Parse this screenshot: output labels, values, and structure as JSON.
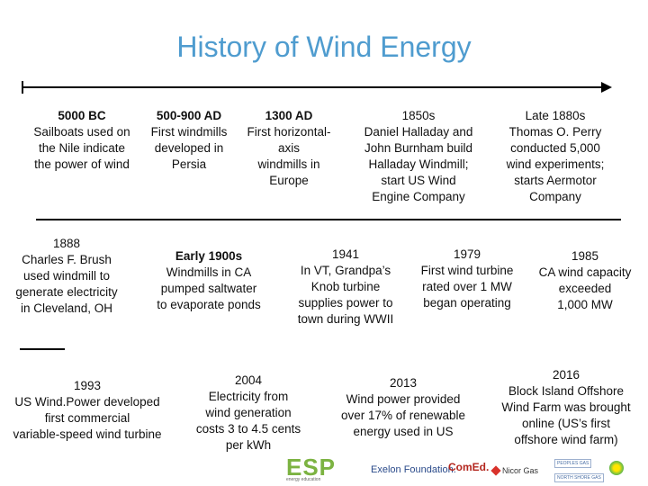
{
  "title": "History of Wind Energy",
  "events": [
    {
      "head": "5000 BC",
      "desc": "Sailboats used on\nthe Nile indicate\nthe power of wind",
      "bold": true
    },
    {
      "head": "500-900 AD",
      "desc": "First windmills\ndeveloped in\nPersia",
      "bold": true
    },
    {
      "head": "1300 AD",
      "desc": "First horizontal-\naxis\nwindmills in\nEurope",
      "bold": true
    },
    {
      "head": "1850s",
      "desc": "Daniel Halladay and\nJohn Burnham build\nHalladay Windmill;\nstart US Wind\nEngine Company",
      "bold": false
    },
    {
      "head": "Late 1880s",
      "desc": "Thomas O. Perry\nconducted 5,000\nwind experiments;\nstarts Aermotor\nCompany",
      "bold": false
    },
    {
      "head": "1888",
      "desc": "Charles F. Brush\nused windmill to\ngenerate electricity\nin Cleveland, OH",
      "bold": false
    },
    {
      "head": "Early 1900s",
      "desc": "Windmills in CA\npumped saltwater\nto evaporate ponds",
      "bold": true
    },
    {
      "head": "1941",
      "desc": "In VT, Grandpa’s\nKnob turbine\nsupplies power to\ntown during WWII",
      "bold": false
    },
    {
      "head": "1979",
      "desc": "First wind turbine\nrated over 1 MW\nbegan operating",
      "bold": false
    },
    {
      "head": "1985",
      "desc": "CA wind capacity\nexceeded\n1,000 MW",
      "bold": false
    },
    {
      "head": "1993",
      "desc": "US Wind.Power developed\nfirst commercial\nvariable-speed wind turbine",
      "bold": false
    },
    {
      "head": "2004",
      "desc": "Electricity from\nwind generation\ncosts 3 to 4.5 cents\nper kWh",
      "bold": false
    },
    {
      "head": "2013",
      "desc": "Wind power provided\nover 17% of renewable\nenergy used in US",
      "bold": false
    },
    {
      "head": "2016",
      "desc": "Block Island Offshore\nWind Farm was brought\nonline (US’s first\noffshore wind farm)",
      "bold": false
    }
  ],
  "logos": {
    "esp": "ESP",
    "esp_tagline": "energy education",
    "exelon": "Exelon Foundation.",
    "comed": "ComEd.",
    "nicor": "Nicor Gas",
    "small1": "PEOPLES GAS",
    "small2": "NORTH SHORE GAS"
  }
}
